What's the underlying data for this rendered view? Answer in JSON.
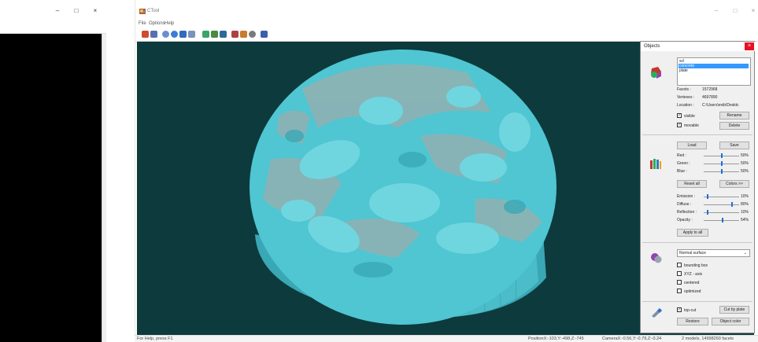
{
  "left_window": {
    "minimize": "–",
    "maximize": "□",
    "close": "×"
  },
  "main_window": {
    "title": "CTool",
    "minimize": "–",
    "maximize": "□",
    "close": "×"
  },
  "menu": [
    "File",
    "Options",
    "Help"
  ],
  "toolbar_icons": [
    "open-icon",
    "save-icon",
    "rotate-icon",
    "zoom-icon",
    "pan-icon",
    "select-icon",
    "material-icon",
    "image-icon",
    "color-icon",
    "print-icon",
    "settings-icon",
    "light-icon",
    "info-icon"
  ],
  "objects_panel": {
    "title": "Objects",
    "close": "×",
    "list": [
      "scl",
      "concrete",
      "plate"
    ],
    "selected_index": 1,
    "facets_label": "Facets :",
    "facets_value": "1572968",
    "vertexes_label": "Vertexes :",
    "vertexes_value": "4697890",
    "location_label": "Location :",
    "location_value": "C:\\Users\\evib\\Desktc",
    "visible_label": "visible",
    "visible_checked": true,
    "movable_label": "movable",
    "movable_checked": true,
    "rename_label": "Rename",
    "delete_label": "Delete",
    "load_label": "Load",
    "save_label": "Save",
    "colors": [
      {
        "label": "Red :",
        "value": "50%",
        "level": 0.5
      },
      {
        "label": "Green :",
        "value": "50%",
        "level": 0.5
      },
      {
        "label": "Blue :",
        "value": "50%",
        "level": 0.5
      }
    ],
    "reset_all_label": "Reset all",
    "colors_btn_label": "Colors >>",
    "lighting": [
      {
        "label": "Emission :",
        "value": "10%",
        "level": 0.1
      },
      {
        "label": "Diffuse :",
        "value": "80%",
        "level": 0.8
      },
      {
        "label": "Reflection :",
        "value": "10%",
        "level": 0.1
      },
      {
        "label": "Opacity :",
        "value": "54%",
        "level": 0.54
      }
    ],
    "apply_all_label": "Apply to all",
    "surface_select": "Normal surface",
    "options": [
      {
        "label": "bounding box",
        "checked": false
      },
      {
        "label": "XYZ - axis",
        "checked": false
      },
      {
        "label": "centered",
        "checked": false
      },
      {
        "label": "optimized",
        "checked": false
      }
    ],
    "topcut_label": "top-cut",
    "topcut_checked": true,
    "cut_by_plate_label": "Cut by plate",
    "restore_label": "Restore",
    "object_color_label": "Object color"
  },
  "status": {
    "help": "For Help, press F1",
    "position": "PositionX:-103,Y:-498,Z:-745",
    "camera": "CameraX:-0.56,Y:-0.79,Z:-0.24",
    "models": "2 models, 14998260 facets"
  },
  "colors": {
    "viewport_bg": "#0d3a3d",
    "model_main": "#4cc4d0",
    "model_light": "#6fd6df",
    "model_dark": "#2f9aa8",
    "aggregate_gray": "#8fb1b3",
    "selection": "#3399ff",
    "close_red": "#e81123"
  }
}
